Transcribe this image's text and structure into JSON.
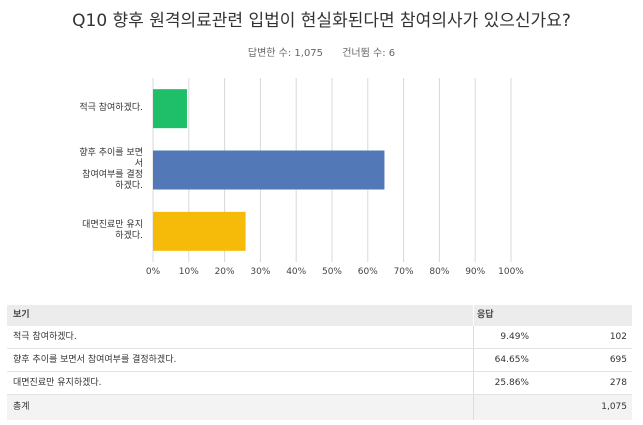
{
  "header": {
    "title": "Q10 향후 원격의료관련 입법이 현실화된다면 참여의사가 있으신가요?",
    "answered": "답변한 수: 1,075",
    "skipped": "건너뜀 수: 6"
  },
  "colors": {
    "bar1": "#1fbf6a",
    "bar2": "#5278b8",
    "bar3": "#f6bb09",
    "grid": "#d8d8d8"
  },
  "chart_data": {
    "type": "bar",
    "orientation": "horizontal",
    "categories": [
      [
        "적극 참여하겠다."
      ],
      [
        "향후 추이를 보면",
        "서",
        "참여여부를 결정",
        "하겠다."
      ],
      [
        "대면진료만 유지",
        "하겠다."
      ]
    ],
    "values": [
      9.49,
      64.65,
      25.86
    ],
    "xlim": [
      0,
      100
    ],
    "xticks": [
      "0%",
      "10%",
      "20%",
      "30%",
      "40%",
      "50%",
      "60%",
      "70%",
      "80%",
      "90%",
      "100%"
    ],
    "grid": true,
    "legend": "none"
  },
  "table": {
    "headers": {
      "option": "보기",
      "response": "응답"
    },
    "rows": [
      {
        "label": "적극 참여하겠다.",
        "pct": "9.49%",
        "count": "102"
      },
      {
        "label": "향후 추이를 보면서 참여여부를 결정하겠다.",
        "pct": "64.65%",
        "count": "695"
      },
      {
        "label": "대면진료만 유지하겠다.",
        "pct": "25.86%",
        "count": "278"
      }
    ],
    "total": {
      "label": "총계",
      "count": "1,075"
    }
  }
}
